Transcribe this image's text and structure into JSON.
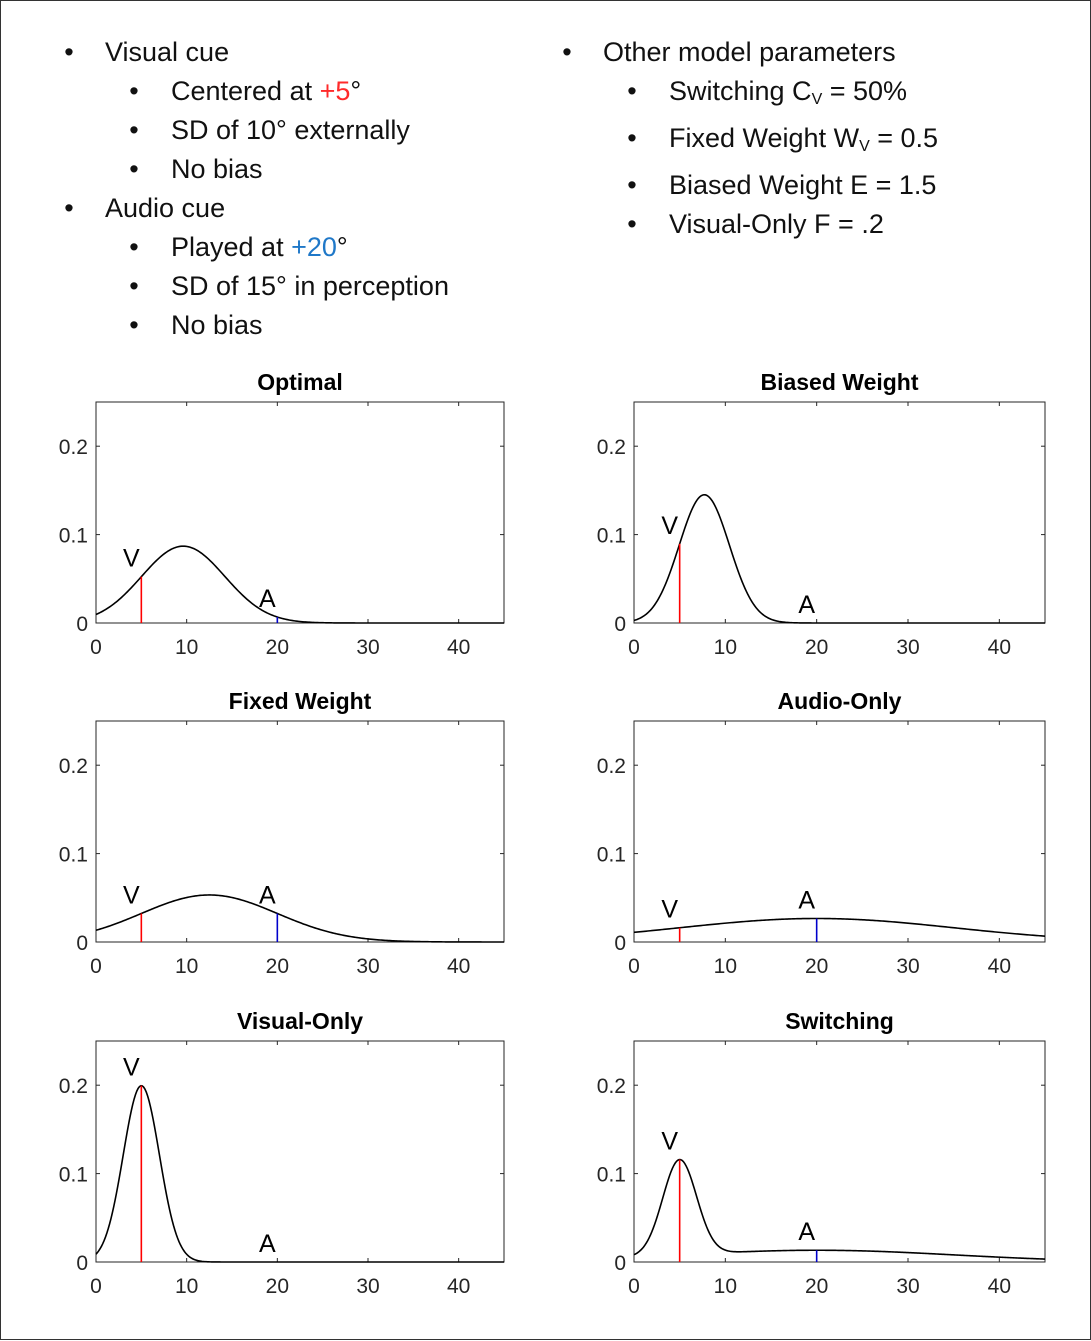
{
  "colors": {
    "visual": "#ff0000",
    "audio": "#0000cc",
    "curve": "#000000",
    "red_text": "#ff2a2a",
    "blue_text": "#1f78c8"
  },
  "bullets": {
    "visual_cue": "Visual cue",
    "visual_centered_pre": "Centered at ",
    "visual_centered_val": "+5",
    "visual_centered_post": "°",
    "visual_sd": "SD of 10° externally",
    "visual_bias": "No bias",
    "audio_cue": "Audio cue",
    "audio_played_pre": "Played at ",
    "audio_played_val": "+20",
    "audio_played_post": "°",
    "audio_sd": "SD of 15° in perception",
    "audio_bias": "No bias",
    "other": "Other model parameters",
    "switching_pre": "Switching C",
    "switching_sub": "V",
    "switching_post": " = 50%",
    "fixed_pre": "Fixed Weight W",
    "fixed_sub": "V",
    "fixed_post": " = 0.5",
    "biased": "Biased Weight E = 1.5",
    "visual_only": "Visual-Only F = .2"
  },
  "chart_data": [
    {
      "type": "line",
      "title": "Optimal",
      "xlim": [
        0,
        45
      ],
      "ylim": [
        0,
        0.25
      ],
      "xticks": [
        0,
        10,
        20,
        30,
        40
      ],
      "yticks": [
        0,
        0.1,
        0.2
      ],
      "series": [
        {
          "kind": "gaussian_mixture",
          "components": [
            {
              "weight": 1,
              "mean": 9.62,
              "sd": 4.59
            }
          ]
        }
      ],
      "markers": [
        {
          "label": "V",
          "x": 5,
          "color": "#ff0000"
        },
        {
          "label": "A",
          "x": 20,
          "color": "#0000cc"
        }
      ]
    },
    {
      "type": "line",
      "title": "Biased Weight",
      "xlim": [
        0,
        45
      ],
      "ylim": [
        0,
        0.25
      ],
      "xticks": [
        0,
        10,
        20,
        30,
        40
      ],
      "yticks": [
        0,
        0.1,
        0.2
      ],
      "series": [
        {
          "kind": "gaussian_mixture",
          "components": [
            {
              "weight": 1,
              "mean": 7.7,
              "sd": 2.75
            }
          ]
        }
      ],
      "markers": [
        {
          "label": "V",
          "x": 5,
          "color": "#ff0000"
        },
        {
          "label": "A",
          "x": 20,
          "color": "#0000cc"
        }
      ]
    },
    {
      "type": "line",
      "title": "Fixed Weight",
      "xlim": [
        0,
        45
      ],
      "ylim": [
        0,
        0.25
      ],
      "xticks": [
        0,
        10,
        20,
        30,
        40
      ],
      "yticks": [
        0,
        0.1,
        0.2
      ],
      "series": [
        {
          "kind": "gaussian_mixture",
          "components": [
            {
              "weight": 1,
              "mean": 12.5,
              "sd": 7.5
            }
          ]
        }
      ],
      "markers": [
        {
          "label": "V",
          "x": 5,
          "color": "#ff0000"
        },
        {
          "label": "A",
          "x": 20,
          "color": "#0000cc"
        }
      ]
    },
    {
      "type": "line",
      "title": "Audio-Only",
      "xlim": [
        0,
        45
      ],
      "ylim": [
        0,
        0.25
      ],
      "xticks": [
        0,
        10,
        20,
        30,
        40
      ],
      "yticks": [
        0,
        0.1,
        0.2
      ],
      "series": [
        {
          "kind": "gaussian_mixture",
          "components": [
            {
              "weight": 1,
              "mean": 20,
              "sd": 15
            }
          ]
        }
      ],
      "markers": [
        {
          "label": "V",
          "x": 5,
          "color": "#ff0000"
        },
        {
          "label": "A",
          "x": 20,
          "color": "#0000cc"
        }
      ]
    },
    {
      "type": "line",
      "title": "Visual-Only",
      "xlim": [
        0,
        45
      ],
      "ylim": [
        0,
        0.25
      ],
      "xticks": [
        0,
        10,
        20,
        30,
        40
      ],
      "yticks": [
        0,
        0.1,
        0.2
      ],
      "series": [
        {
          "kind": "gaussian_mixture",
          "components": [
            {
              "weight": 1,
              "mean": 5,
              "sd": 2
            }
          ]
        }
      ],
      "markers": [
        {
          "label": "V",
          "x": 5,
          "color": "#ff0000"
        },
        {
          "label": "A",
          "x": 20,
          "color": "#0000cc"
        }
      ]
    },
    {
      "type": "line",
      "title": "Switching",
      "xlim": [
        0,
        45
      ],
      "ylim": [
        0,
        0.25
      ],
      "xticks": [
        0,
        10,
        20,
        30,
        40
      ],
      "yticks": [
        0,
        0.1,
        0.2
      ],
      "series": [
        {
          "kind": "gaussian_mixture",
          "components": [
            {
              "weight": 0.5,
              "mean": 5,
              "sd": 1.85
            },
            {
              "weight": 0.5,
              "mean": 20,
              "sd": 15
            }
          ]
        }
      ],
      "markers": [
        {
          "label": "V",
          "x": 5,
          "color": "#ff0000"
        },
        {
          "label": "A",
          "x": 20,
          "color": "#0000cc"
        }
      ]
    }
  ]
}
